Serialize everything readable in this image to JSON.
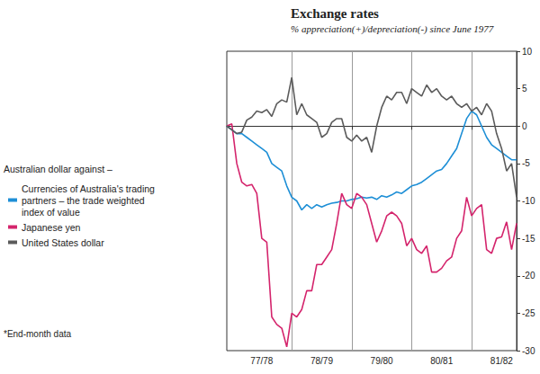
{
  "chart_data": {
    "type": "line",
    "title": "Exchange rates",
    "subtitle": "% appreciation(+)/depreciation(-) since June 1977",
    "legend_title": "Australian dollar against –",
    "footnote": "*End-month data",
    "categories": [
      null,
      null,
      null,
      null,
      null,
      null,
      null,
      "77/78",
      null,
      null,
      null,
      null,
      null,
      null,
      null,
      null,
      null,
      null,
      null,
      "78/79",
      null,
      null,
      null,
      null,
      null,
      null,
      null,
      null,
      null,
      null,
      null,
      "79/80",
      null,
      null,
      null,
      null,
      null,
      null,
      null,
      null,
      null,
      null,
      null,
      "80/81",
      null,
      null,
      null,
      null,
      null,
      null,
      null,
      null,
      null,
      null,
      null,
      "81/82",
      null,
      null,
      null
    ],
    "series": [
      {
        "name": "Currencies of Australia's trading partners – the trade weighted index of value",
        "color": "#1e8fd6",
        "values": [
          0,
          -0.5,
          -1,
          -1,
          -1.5,
          -2,
          -2.5,
          -3,
          -3.5,
          -5,
          -5.5,
          -6,
          -8,
          -9.5,
          -10,
          -11.2,
          -10.5,
          -11,
          -10.5,
          -10.8,
          -10.5,
          -10.3,
          -10.2,
          -10,
          -10,
          -9.8,
          -9.7,
          -9.5,
          -9.6,
          -9.5,
          -9.8,
          -9.3,
          -9.5,
          -9.2,
          -8.8,
          -9,
          -8.5,
          -8,
          -7.8,
          -7.5,
          -7,
          -6.5,
          -6,
          -5.8,
          -5,
          -4,
          -3,
          -1,
          1,
          2,
          1.5,
          0,
          -1.5,
          -2.5,
          -3,
          -3.5,
          -4,
          -4.5,
          -4.5
        ]
      },
      {
        "name": "Japanese yen",
        "color": "#d4246c",
        "values": [
          0,
          0.3,
          -5,
          -7.5,
          -8,
          -7.8,
          -9,
          -15,
          -15.5,
          -25.5,
          -26.5,
          -27,
          -29.5,
          -25,
          -25.5,
          -24.5,
          -22,
          -22,
          -18.5,
          -18.5,
          -17.5,
          -16.5,
          -13,
          -9,
          -10.5,
          -11,
          -9,
          -9.5,
          -10.5,
          -13,
          -15.5,
          -14,
          -12,
          -11.5,
          -12,
          -13,
          -16,
          -15,
          -16.5,
          -17,
          -16,
          -19.5,
          -19.5,
          -19,
          -18,
          -17.5,
          -15,
          -14,
          -9.5,
          -12,
          -11,
          -10.5,
          -16.5,
          -17,
          -15,
          -14.8,
          -12.8,
          -16.5,
          -13
        ]
      },
      {
        "name": "United States dollar",
        "color": "#5b5b5b",
        "values": [
          0,
          -0.5,
          -1,
          -0.8,
          0.8,
          1.2,
          2,
          1.8,
          2.2,
          1.3,
          3,
          3.5,
          3.2,
          6.5,
          1.5,
          3,
          1.5,
          1,
          0.5,
          -1.5,
          -1,
          0.5,
          1,
          1,
          -1.5,
          -2,
          -1.2,
          -2,
          -1.5,
          -3.5,
          0,
          2.5,
          4,
          3.5,
          4.5,
          4.5,
          3,
          5,
          4.5,
          4,
          5.5,
          4.5,
          5,
          4,
          3.5,
          4,
          3,
          2.5,
          3,
          2,
          2.5,
          1.5,
          3,
          2,
          -1,
          -3,
          -6,
          -5,
          -9.5
        ]
      }
    ],
    "ylim": [
      -30,
      10
    ],
    "yticks": [
      -30,
      -25,
      -20,
      -15,
      -10,
      -5,
      0,
      5,
      10
    ],
    "grid": true,
    "legend": "left"
  }
}
